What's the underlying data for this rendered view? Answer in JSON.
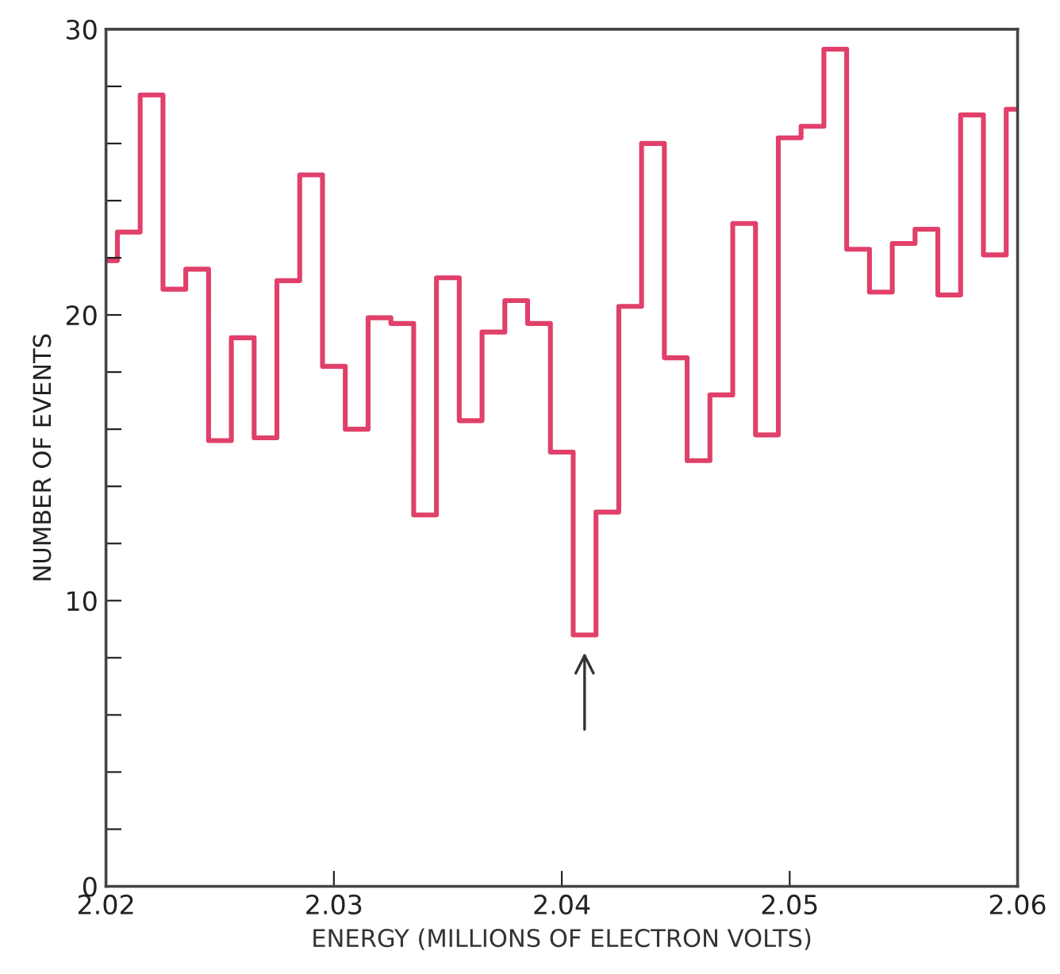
{
  "chart_data": {
    "type": "histogram",
    "xlabel": "ENERGY (MILLIONS OF ELECTRON VOLTS)",
    "ylabel": "NUMBER OF EVENTS",
    "bins": [
      2.02,
      2.0205,
      2.0215,
      2.0225,
      2.0235,
      2.0245,
      2.0255,
      2.0265,
      2.0275,
      2.0285,
      2.0295,
      2.0305,
      2.0315,
      2.0325,
      2.0335,
      2.0345,
      2.0355,
      2.0365,
      2.0375,
      2.0385,
      2.0395,
      2.0405,
      2.0415,
      2.0425,
      2.0435,
      2.0445,
      2.0455,
      2.0465,
      2.0475,
      2.0485,
      2.0495,
      2.0505,
      2.0515,
      2.0525,
      2.0535,
      2.0545,
      2.0555,
      2.0565,
      2.0575,
      2.0585,
      2.0595,
      2.06
    ],
    "values": [
      21.9,
      22.9,
      27.7,
      20.9,
      21.6,
      15.6,
      19.2,
      15.7,
      21.2,
      24.9,
      18.2,
      16.0,
      19.9,
      19.7,
      13.0,
      21.3,
      16.3,
      19.4,
      20.5,
      19.7,
      15.2,
      8.8,
      13.1,
      20.3,
      26.0,
      18.5,
      14.9,
      17.2,
      23.2,
      15.8,
      26.2,
      26.6,
      29.3,
      22.3,
      20.8,
      22.5,
      23.0,
      20.7,
      27.0,
      22.1,
      27.2
    ],
    "color": "#e0406a",
    "xlim": [
      2.02,
      2.06
    ],
    "xticks": [
      2.02,
      2.03,
      2.04,
      2.05,
      2.06
    ],
    "ylim": [
      0,
      30
    ],
    "yticks": [
      0,
      {
        "value": 2,
        "label": null
      },
      {
        "value": 4,
        "label": null
      },
      {
        "value": 6,
        "label": null
      },
      {
        "value": 8,
        "label": null
      },
      10,
      {
        "value": 12,
        "label": null
      },
      {
        "value": 14,
        "label": null
      },
      {
        "value": 16,
        "label": null
      },
      {
        "value": 18,
        "label": null
      },
      20,
      {
        "value": 22,
        "label": null
      },
      {
        "value": 24,
        "label": null
      },
      {
        "value": 26,
        "label": null
      },
      {
        "value": 28,
        "label": null
      },
      30
    ],
    "grid": false,
    "legend": false
  }
}
